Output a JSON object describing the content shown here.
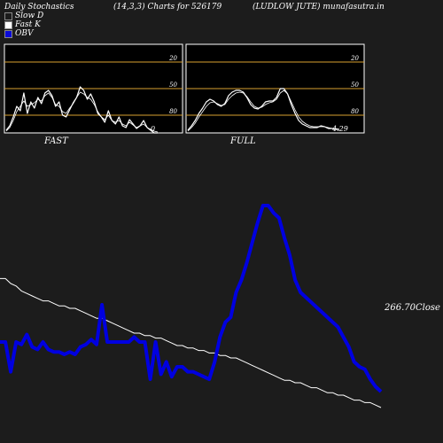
{
  "header": {
    "left": "Daily Stochastics",
    "params": "(14,3,3) Charts for 526179",
    "right": "(LUDLOW JUTE) munafasutra.in"
  },
  "legend": [
    {
      "label": "Slow  D",
      "color": "#1c1c1c"
    },
    {
      "label": "Fast K",
      "color": "#ffffff"
    },
    {
      "label": "OBV",
      "color": "#0a0ad8"
    }
  ],
  "colors": {
    "background": "#1c1c1c",
    "panel": "#000000",
    "panel_border": "#ffffff",
    "gridline": "#d9a030",
    "stoch_line": "#ffffff",
    "obv_line": "#0000e0",
    "close_line": "#ffffff"
  },
  "chart_data": [
    {
      "type": "line",
      "title": "FAST",
      "ylim": [
        0,
        100
      ],
      "gridlines": [
        20,
        50,
        80
      ],
      "tick_labels": [
        "80",
        "50",
        "20"
      ],
      "last_value_label": "0",
      "series": [
        {
          "values": [
            3,
            8,
            18,
            30,
            25,
            45,
            22,
            35,
            28,
            40,
            33,
            45,
            48,
            42,
            30,
            35,
            20,
            18,
            26,
            34,
            40,
            52,
            48,
            38,
            44,
            35,
            22,
            18,
            12,
            25,
            14,
            10,
            18,
            8,
            6,
            15,
            10,
            5,
            8,
            14,
            6,
            3,
            0,
            0
          ]
        },
        {
          "values": [
            2,
            6,
            14,
            24,
            30,
            36,
            30,
            32,
            34,
            38,
            36,
            42,
            45,
            40,
            32,
            30,
            24,
            22,
            28,
            33,
            40,
            46,
            44,
            40,
            38,
            32,
            24,
            18,
            15,
            20,
            14,
            12,
            14,
            10,
            8,
            12,
            9,
            6,
            8,
            10,
            6,
            4,
            2,
            1
          ]
        }
      ]
    },
    {
      "type": "line",
      "title": "FULL",
      "ylim": [
        0,
        100
      ],
      "gridlines": [
        20,
        50,
        80
      ],
      "tick_labels": [
        "80",
        "50",
        "20"
      ],
      "last_value_label": "4.29",
      "series": [
        {
          "values": [
            3,
            8,
            14,
            22,
            28,
            35,
            38,
            36,
            32,
            30,
            33,
            42,
            46,
            48,
            48,
            46,
            40,
            32,
            28,
            27,
            30,
            35,
            36,
            36,
            40,
            50,
            50,
            44,
            32,
            22,
            14,
            10,
            8,
            6,
            6,
            6,
            8,
            7,
            5,
            5,
            4,
            4
          ]
        },
        {
          "values": [
            2,
            6,
            11,
            18,
            24,
            30,
            34,
            35,
            33,
            31,
            32,
            38,
            42,
            45,
            46,
            45,
            41,
            35,
            30,
            28,
            29,
            32,
            34,
            35,
            38,
            45,
            48,
            44,
            35,
            26,
            18,
            13,
            10,
            8,
            7,
            7,
            7,
            7,
            6,
            5,
            5,
            4
          ]
        }
      ]
    },
    {
      "type": "line",
      "series": [
        {
          "name": "Close",
          "values": [
            52,
            52,
            50,
            49,
            47,
            46,
            45,
            44,
            43,
            43,
            42,
            41,
            41,
            40,
            40,
            39,
            38,
            37,
            36,
            36,
            35,
            34,
            33,
            32,
            31,
            30,
            30,
            29,
            29,
            28,
            28,
            27,
            26,
            25,
            25,
            24,
            24,
            23,
            23,
            22,
            22,
            21,
            21,
            20,
            20,
            19,
            18,
            17,
            16,
            15,
            14,
            13,
            12,
            11,
            11,
            10,
            10,
            9,
            8,
            8,
            7,
            6,
            6,
            5,
            5,
            4,
            3,
            3,
            2,
            2,
            1,
            0
          ]
        },
        {
          "name": "OBV",
          "values": [
            30,
            30,
            18,
            30,
            29,
            33,
            28,
            27,
            30,
            27,
            26,
            26,
            25,
            26,
            25,
            28,
            29,
            31,
            29,
            45,
            30,
            30,
            30,
            30,
            30,
            32,
            30,
            30,
            15,
            30,
            17,
            22,
            16,
            20,
            20,
            18,
            18,
            17,
            16,
            15,
            22,
            32,
            38,
            40,
            50,
            55,
            62,
            70,
            78,
            85,
            85,
            82,
            80,
            72,
            65,
            55,
            50,
            48,
            46,
            44,
            42,
            40,
            38,
            36,
            32,
            28,
            22,
            20,
            19,
            15,
            12,
            10
          ]
        }
      ],
      "last_value_label": "266.70Close"
    }
  ]
}
